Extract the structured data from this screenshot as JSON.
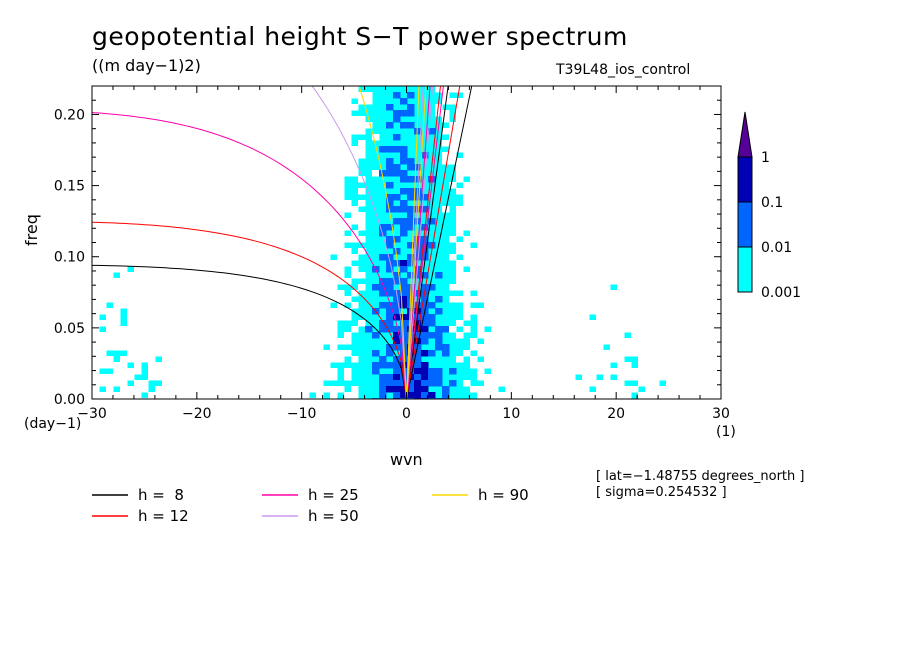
{
  "chart_data": {
    "type": "heatmap",
    "title": "geopotential height S−T power spectrum",
    "units": "((m day−1)2)",
    "run_label": "T39L48_ios_control",
    "xlabel": "wvn",
    "ylabel": "freq",
    "x_unit": "(1)",
    "y_unit": "(day−1)",
    "xlim": [
      -30,
      30
    ],
    "ylim": [
      0,
      0.22
    ],
    "x_ticks": [
      -30,
      -20,
      -10,
      0,
      10,
      20,
      30
    ],
    "x_tick_labels": [
      "−30",
      "−20",
      "−10",
      "0",
      "10",
      "20",
      "30"
    ],
    "y_ticks": [
      0.0,
      0.05,
      0.1,
      0.15,
      0.2
    ],
    "y_tick_labels": [
      "0.00",
      "0.05",
      "0.10",
      "0.15",
      "0.20"
    ],
    "colorbar": {
      "levels": [
        "0.001",
        "0.01",
        "0.1",
        "1"
      ],
      "colors": [
        "#ffffff",
        "#00ffff",
        "#0066ff",
        "#0000b4",
        "#550099"
      ]
    },
    "dispersion_curves": [
      {
        "name": "h =  8",
        "color": "#000000"
      },
      {
        "name": "h = 12",
        "color": "#ff0000"
      },
      {
        "name": "h = 25",
        "color": "#ff00aa"
      },
      {
        "name": "h = 50",
        "color": "#cc99ee"
      },
      {
        "name": "h = 90",
        "color": "#ffd700"
      }
    ],
    "annotations": [
      "[ lat=−1.48755 degrees_north ]",
      "[ sigma=0.254532 ]"
    ]
  }
}
